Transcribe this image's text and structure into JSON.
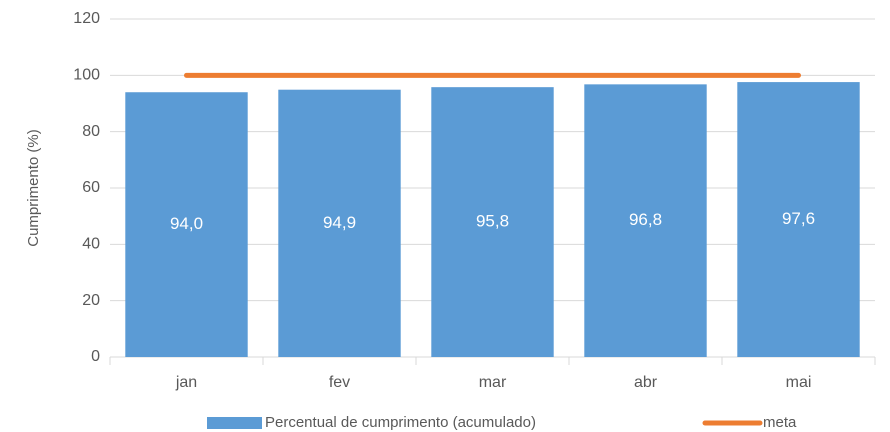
{
  "chart_data": {
    "type": "bar",
    "y_label": "Cumprimento (%)",
    "categories": [
      "jan",
      "fev",
      "mar",
      "abr",
      "mai"
    ],
    "series": [
      {
        "name": "Percentual de cumprimento (acumulado)",
        "type": "bar",
        "color": "#5b9bd5",
        "values": [
          94.0,
          94.9,
          95.8,
          96.8,
          97.6
        ],
        "value_labels": [
          "94,0",
          "94,9",
          "95,8",
          "96,8",
          "97,6"
        ]
      },
      {
        "name": "meta",
        "type": "line",
        "color": "#ed7d31",
        "values": [
          100,
          100,
          100,
          100,
          100
        ]
      }
    ],
    "ylim": [
      0,
      120
    ],
    "yticks": [
      0,
      20,
      40,
      60,
      80,
      100,
      120
    ],
    "grid": true,
    "legend": "bottom"
  }
}
